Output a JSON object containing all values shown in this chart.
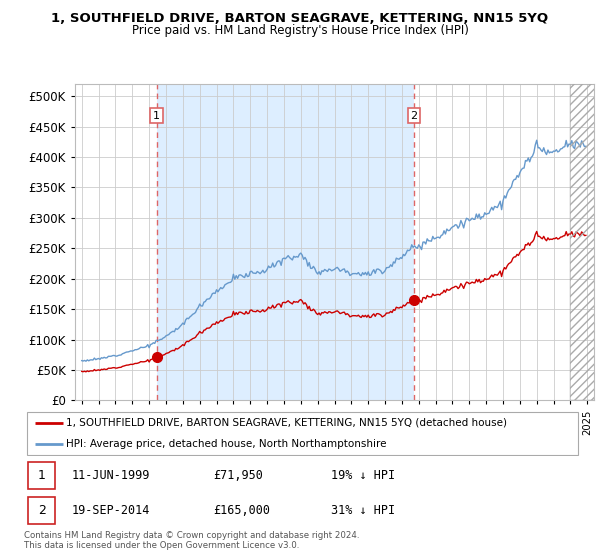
{
  "title": "1, SOUTHFIELD DRIVE, BARTON SEAGRAVE, KETTERING, NN15 5YQ",
  "subtitle": "Price paid vs. HM Land Registry's House Price Index (HPI)",
  "legend_line1": "1, SOUTHFIELD DRIVE, BARTON SEAGRAVE, KETTERING, NN15 5YQ (detached house)",
  "legend_line2": "HPI: Average price, detached house, North Northamptonshire",
  "sale1_label": "1",
  "sale1_date": "11-JUN-1999",
  "sale1_price": "£71,950",
  "sale1_hpi": "19% ↓ HPI",
  "sale1_year": 1999.44,
  "sale1_value": 71950,
  "sale2_label": "2",
  "sale2_date": "19-SEP-2014",
  "sale2_price": "£165,000",
  "sale2_hpi": "31% ↓ HPI",
  "sale2_year": 2014.72,
  "sale2_value": 165000,
  "red_line_color": "#cc0000",
  "blue_line_color": "#6699cc",
  "dashed_vline_color": "#dd6666",
  "background_color": "#ffffff",
  "grid_color": "#cccccc",
  "fill_color": "#ddeeff",
  "ylabel": "",
  "ylim_min": 0,
  "ylim_max": 520000,
  "yticks": [
    0,
    50000,
    100000,
    150000,
    200000,
    250000,
    300000,
    350000,
    400000,
    450000,
    500000
  ],
  "footer": "Contains HM Land Registry data © Crown copyright and database right 2024.\nThis data is licensed under the Open Government Licence v3.0.",
  "hpi_base_vals": {
    "1995": 65000,
    "1996": 68000,
    "1997": 74000,
    "1998": 82000,
    "1999": 90000,
    "2000": 105000,
    "2001": 125000,
    "2002": 155000,
    "2003": 180000,
    "2004": 200000,
    "2005": 208000,
    "2006": 215000,
    "2007": 232000,
    "2008": 240000,
    "2009": 210000,
    "2010": 218000,
    "2011": 210000,
    "2012": 208000,
    "2013": 215000,
    "2014": 238000,
    "2015": 255000,
    "2016": 268000,
    "2017": 285000,
    "2018": 295000,
    "2019": 308000,
    "2020": 325000,
    "2021": 375000,
    "2022": 415000,
    "2023": 405000,
    "2024": 420000
  }
}
